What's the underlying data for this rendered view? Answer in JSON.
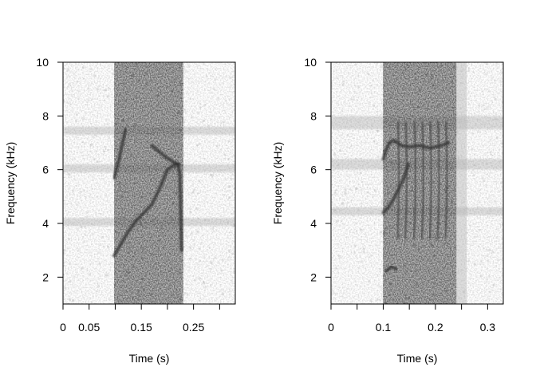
{
  "chart_data": [
    {
      "type": "heatmap",
      "subtype": "spectrogram",
      "xlabel": "Time (s)",
      "ylabel": "Frequency (kHz)",
      "xlim": [
        0,
        0.33
      ],
      "ylim": [
        1,
        10
      ],
      "xticks": [
        0,
        0.05,
        0.15,
        0.25
      ],
      "xtick_labels": [
        "0",
        "0.05",
        "0.15",
        "0.25"
      ],
      "xticks_minor": [
        0.1,
        0.2,
        0.3
      ],
      "yticks": [
        2,
        4,
        6,
        8,
        10
      ],
      "ytick_labels": [
        "2",
        "4",
        "6",
        "8",
        "10"
      ],
      "colormap": "grayscale",
      "sound_band": {
        "start_s": 0.098,
        "end_s": 0.23
      },
      "background_noise_bands_khz": [
        [
          7.3,
          7.6
        ],
        [
          5.9,
          6.2
        ],
        [
          3.9,
          4.2
        ]
      ],
      "traces": [
        {
          "points": [
            [
              0.098,
              5.7
            ],
            [
              0.105,
              6.2
            ],
            [
              0.112,
              6.8
            ],
            [
              0.12,
              7.5
            ]
          ]
        },
        {
          "points": [
            [
              0.098,
              2.8
            ],
            [
              0.11,
              3.2
            ],
            [
              0.125,
              3.7
            ],
            [
              0.14,
              4.1
            ],
            [
              0.155,
              4.4
            ],
            [
              0.17,
              4.7
            ],
            [
              0.185,
              5.3
            ],
            [
              0.2,
              6.0
            ],
            [
              0.215,
              6.2
            ],
            [
              0.222,
              6.2
            ]
          ]
        },
        {
          "points": [
            [
              0.17,
              6.9
            ],
            [
              0.195,
              6.5
            ],
            [
              0.21,
              6.3
            ],
            [
              0.22,
              6.2
            ],
            [
              0.224,
              5.8
            ],
            [
              0.227,
              3.0
            ]
          ]
        }
      ]
    },
    {
      "type": "heatmap",
      "subtype": "spectrogram",
      "xlabel": "Time (s)",
      "ylabel": "Frequency (kHz)",
      "xlim": [
        0,
        0.33
      ],
      "ylim": [
        1,
        10
      ],
      "xticks": [
        0,
        0.1,
        0.2,
        0.3
      ],
      "xtick_labels": [
        "0",
        "0.1",
        "0.2",
        "0.3"
      ],
      "xticks_minor": [
        0.05,
        0.15,
        0.25
      ],
      "yticks": [
        2,
        4,
        6,
        8,
        10
      ],
      "ytick_labels": [
        "2",
        "4",
        "6",
        "8",
        "10"
      ],
      "colormap": "grayscale",
      "sound_band": {
        "start_s": 0.1,
        "end_s": 0.24
      },
      "faint_band": {
        "start_s": 0.24,
        "end_s": 0.26
      },
      "background_noise_bands_khz": [
        [
          7.5,
          8.0
        ],
        [
          6.0,
          6.4
        ],
        [
          4.3,
          4.6
        ]
      ],
      "traces": [
        {
          "points": [
            [
              0.1,
              6.4
            ],
            [
              0.105,
              6.7
            ],
            [
              0.112,
              7.0
            ],
            [
              0.12,
              7.1
            ],
            [
              0.135,
              6.9
            ],
            [
              0.15,
              6.85
            ],
            [
              0.17,
              6.9
            ],
            [
              0.19,
              6.8
            ],
            [
              0.21,
              6.9
            ],
            [
              0.225,
              7.0
            ]
          ]
        },
        {
          "points": [
            [
              0.1,
              4.4
            ],
            [
              0.11,
              4.6
            ],
            [
              0.12,
              4.9
            ],
            [
              0.13,
              5.3
            ],
            [
              0.14,
              5.7
            ],
            [
              0.148,
              6.2
            ]
          ]
        },
        {
          "points": [
            [
              0.105,
              2.2
            ],
            [
              0.115,
              2.4
            ],
            [
              0.125,
              2.3
            ]
          ]
        }
      ],
      "pulse_trains": [
        {
          "times_s": [
            0.128,
            0.143,
            0.16,
            0.175,
            0.19,
            0.205,
            0.22
          ],
          "top_khz": 7.8,
          "bottom_khz": 3.4
        }
      ]
    }
  ]
}
